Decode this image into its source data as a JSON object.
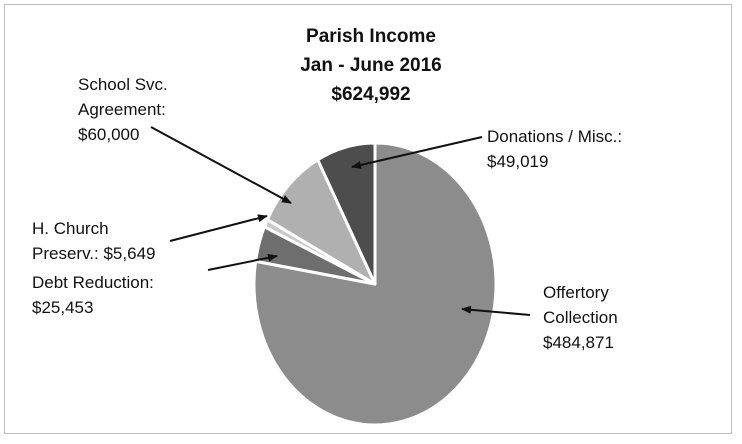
{
  "chart_data": {
    "type": "pie",
    "title": [
      "Parish Income",
      "Jan - June 2016",
      "$624,992"
    ],
    "slices": [
      {
        "name": "Offertory Collection",
        "value": 484871,
        "value_label": "$484,871",
        "label_lines": [
          "Offertory",
          "Collection",
          "$484,871"
        ],
        "color": "#8c8c8c"
      },
      {
        "name": "Debt Reduction",
        "value": 25453,
        "value_label": "$25,453",
        "label_lines": [
          "Debt Reduction:",
          "$25,453"
        ],
        "color": "#6e6e6e"
      },
      {
        "name": "H. Church Preserv.",
        "value": 5649,
        "value_label": "$5,649",
        "label_lines": [
          "H. Church",
          "Preserv.: $5,649"
        ],
        "color": "#c9c9c9"
      },
      {
        "name": "School Svc. Agreement",
        "value": 60000,
        "value_label": "$60,000",
        "label_lines": [
          "School Svc.",
          "Agreement:",
          "$60,000"
        ],
        "color": "#b0b0b0"
      },
      {
        "name": "Donations / Misc.",
        "value": 49019,
        "value_label": "$49,019",
        "label_lines": [
          "Donations / Misc.:",
          "$49,019"
        ],
        "color": "#4d4d4d"
      }
    ],
    "legend": "none",
    "labels": "callouts with arrows"
  }
}
